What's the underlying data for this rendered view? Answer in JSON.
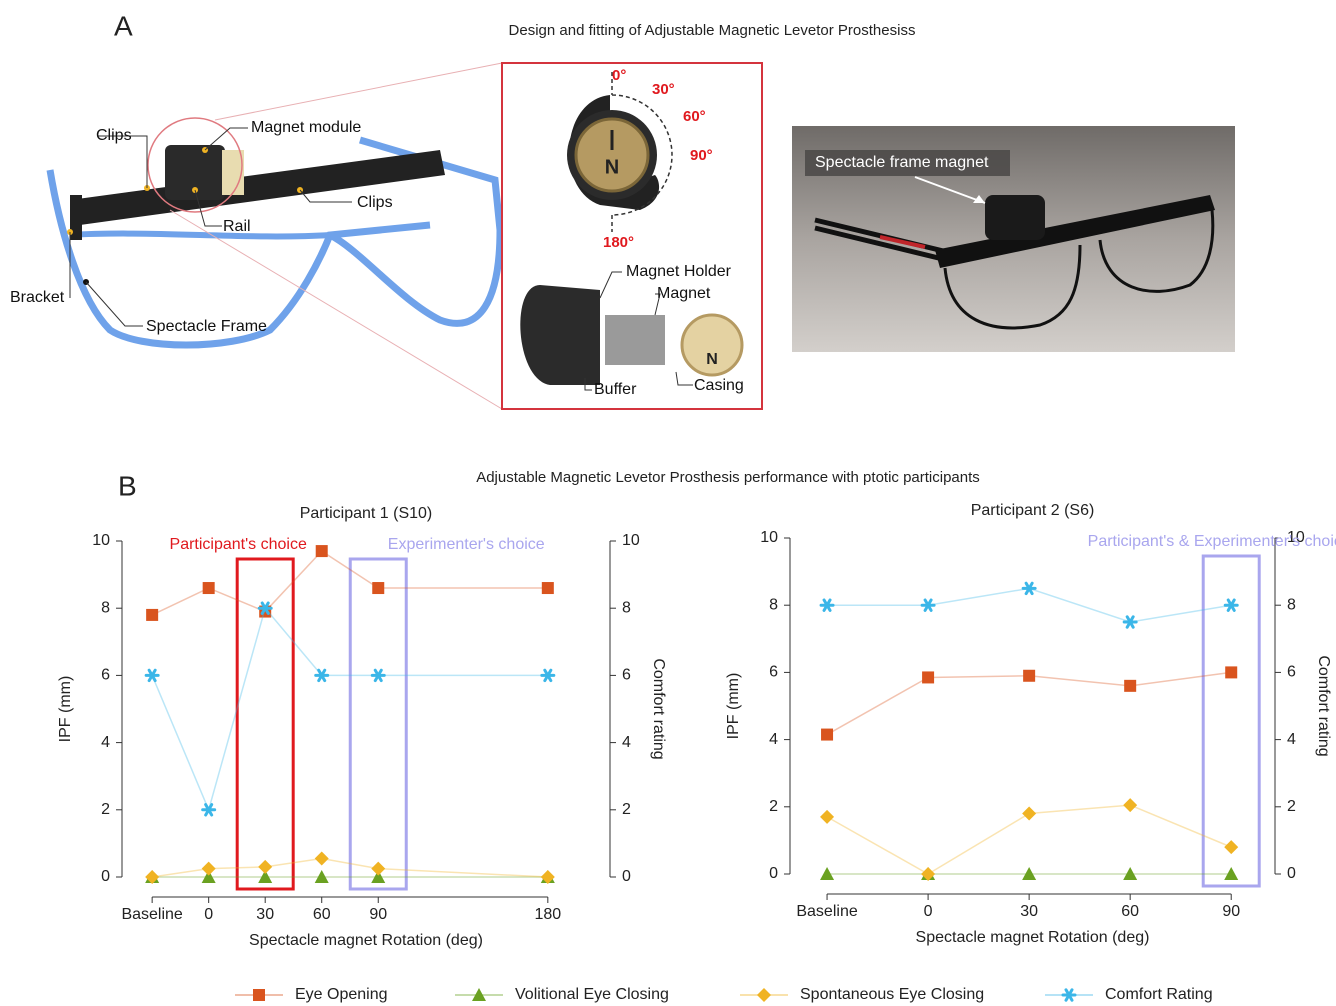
{
  "panel_a": {
    "letter": "A",
    "title": "Design and fitting of Adjustable Magnetic Levetor Prosthesiss",
    "labels": {
      "clips_left": "Clips",
      "magnet_module": "Magnet module",
      "clips_right": "Clips",
      "rail": "Rail",
      "bracket": "Bracket",
      "spectacle_frame": "Spectacle Frame"
    },
    "detail": {
      "angle_0": "0°",
      "angle_30": "30°",
      "angle_60": "60°",
      "angle_90": "90°",
      "angle_180": "180°",
      "north_top": "N",
      "magnet_holder": "Magnet Holder",
      "magnet": "Magnet",
      "buffer": "Buffer",
      "casing": "Casing",
      "north_bottom": "N"
    },
    "photo_label": "Spectacle frame magnet"
  },
  "panel_b": {
    "letter": "B",
    "title": "Adjustable Magnetic Levetor Prosthesis performance with ptotic participants"
  },
  "chart_data": [
    {
      "type": "line",
      "title": "Participant 1 (S10)",
      "x_label": "Spectacle magnet Rotation (deg)",
      "y_label": "IPF (mm)",
      "y2_label": "Comfort rating",
      "x": [
        -30,
        0,
        30,
        60,
        90,
        180
      ],
      "xlim": [
        -46,
        213
      ],
      "xticks": [
        {
          "value": -30,
          "label": "Baseline"
        },
        0,
        30,
        60,
        90,
        180
      ],
      "ylim": [
        0,
        10
      ],
      "yticks": [
        0,
        2,
        4,
        6,
        8,
        10
      ],
      "y2lim": [
        0,
        10
      ],
      "y2ticks": [
        0,
        2,
        4,
        6,
        8,
        10
      ],
      "series": [
        {
          "name": "Eye Opening",
          "color": "#d9541e",
          "marker": "square",
          "values": [
            7.8,
            8.6,
            7.9,
            9.7,
            8.6,
            8.6
          ]
        },
        {
          "name": "Volitional Eye Closing",
          "color": "#6aa121",
          "marker": "triangle",
          "values": [
            0,
            0,
            0,
            0,
            0,
            0
          ]
        },
        {
          "name": "Spontaneous Eye Closing",
          "color": "#f0b323",
          "marker": "diamond",
          "values": [
            0,
            0.25,
            0.3,
            0.55,
            0.25,
            0
          ]
        },
        {
          "name": "Comfort Rating",
          "color": "#3bb6e8",
          "marker": "star",
          "axis": "y2",
          "values": [
            6,
            2,
            8,
            6,
            6,
            6
          ]
        }
      ],
      "highlights": [
        {
          "label": "Participant's choice",
          "x": 30,
          "color": "#e0191e"
        },
        {
          "label": "Experimenter's choice",
          "x": 90,
          "color": "#a9a6ee"
        }
      ]
    },
    {
      "type": "line",
      "title": "Participant 2 (S6)",
      "x_label": "Spectacle magnet Rotation (deg)",
      "y_label": "IPF (mm)",
      "y2_label": "Comfort rating",
      "x": [
        -30,
        0,
        30,
        60,
        90
      ],
      "xlim": [
        -41,
        103
      ],
      "xticks": [
        {
          "value": -30,
          "label": "Baseline"
        },
        0,
        30,
        60,
        90
      ],
      "ylim": [
        0,
        10
      ],
      "yticks": [
        0,
        2,
        4,
        6,
        8,
        10
      ],
      "y2lim": [
        0,
        10
      ],
      "y2ticks": [
        0,
        2,
        4,
        6,
        8,
        10
      ],
      "series": [
        {
          "name": "Eye Opening",
          "color": "#d9541e",
          "marker": "square",
          "values": [
            4.15,
            5.85,
            5.9,
            5.6,
            6.0
          ]
        },
        {
          "name": "Volitional Eye Closing",
          "color": "#6aa121",
          "marker": "triangle",
          "values": [
            0,
            0,
            0,
            0,
            0
          ]
        },
        {
          "name": "Spontaneous Eye Closing",
          "color": "#f0b323",
          "marker": "diamond",
          "values": [
            1.7,
            0,
            1.8,
            2.05,
            0.8
          ]
        },
        {
          "name": "Comfort Rating",
          "color": "#3bb6e8",
          "marker": "star",
          "axis": "y2",
          "values": [
            8,
            8,
            8.5,
            7.5,
            8
          ]
        }
      ],
      "highlights": [
        {
          "label": "Participant's & Experimenter's choice",
          "x": 90,
          "color": "#a9a6ee"
        }
      ]
    }
  ]
}
